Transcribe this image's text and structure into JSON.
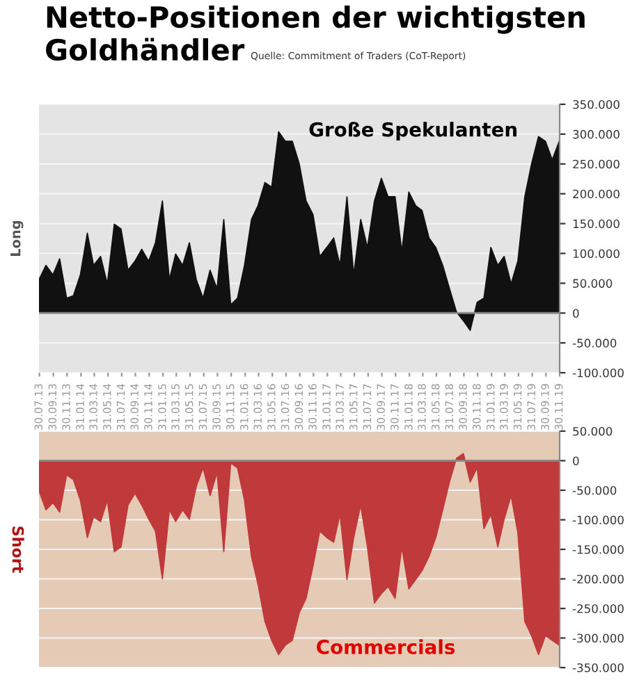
{
  "chart_data": [
    {
      "type": "area",
      "title": "Netto-Positionen der wichtigsten Goldhändler",
      "subtitle": "Quelle: Commitment of Traders (CoT-Report)",
      "ylabel": "Long",
      "annotations": [
        "Große Spekulanten"
      ],
      "x": [
        "2013-07-28",
        "2013-08-28",
        "2013-09-28",
        "2013-10-28",
        "2013-11-28",
        "2013-12-28",
        "2014-01-28",
        "2014-02-28",
        "2014-03-28",
        "2014-04-28",
        "2014-05-28",
        "2014-06-28",
        "2014-07-28",
        "2014-08-28",
        "2014-09-28",
        "2014-10-28",
        "2014-11-28",
        "2014-12-28",
        "2015-01-28",
        "2015-02-28",
        "2015-03-28",
        "2015-04-28",
        "2015-05-28",
        "2015-06-28",
        "2015-07-28",
        "2015-08-28",
        "2015-09-28",
        "2015-10-28",
        "2015-11-28",
        "2015-12-28",
        "2016-01-28",
        "2016-02-28",
        "2016-03-28",
        "2016-04-28",
        "2016-05-28",
        "2016-06-28",
        "2016-07-28",
        "2016-08-28",
        "2016-09-28",
        "2016-10-28",
        "2016-11-28",
        "2016-12-28",
        "2017-01-28",
        "2017-02-28",
        "2017-03-28",
        "2017-04-28",
        "2017-05-28",
        "2017-06-28",
        "2017-07-28",
        "2017-08-28",
        "2017-09-28",
        "2017-10-28",
        "2017-11-28",
        "2017-12-28",
        "2018-01-28",
        "2018-02-28",
        "2018-03-28",
        "2018-04-28",
        "2018-05-28",
        "2018-06-28",
        "2018-07-28",
        "2018-08-28",
        "2018-09-28",
        "2018-10-28",
        "2018-11-28",
        "2018-12-28",
        "2019-01-28",
        "2019-02-28",
        "2019-03-28",
        "2019-04-28",
        "2019-05-28",
        "2019-06-28",
        "2019-07-28",
        "2019-08-28",
        "2019-09-28",
        "2019-10-28",
        "2019-11-28"
      ],
      "series": [
        {
          "color": "#111111",
          "values": [
            56000,
            80000,
            64000,
            91000,
            25000,
            29000,
            64000,
            134000,
            80000,
            95000,
            49000,
            149000,
            141000,
            72000,
            87000,
            107000,
            87000,
            118000,
            188000,
            56000,
            99000,
            80000,
            118000,
            56000,
            25000,
            72000,
            41000,
            157000,
            14000,
            25000,
            80000,
            157000,
            180000,
            219000,
            211000,
            304000,
            288000,
            288000,
            250000,
            188000,
            165000,
            95000,
            110000,
            126000,
            80000,
            195000,
            64000,
            157000,
            110000,
            188000,
            226000,
            195000,
            195000,
            103000,
            203000,
            180000,
            172000,
            126000,
            110000,
            80000,
            41000,
            2000,
            -13000,
            -29000,
            18000,
            25000,
            110000,
            80000,
            95000,
            49000,
            87000,
            195000,
            250000,
            296000,
            288000,
            257000,
            288000
          ]
        }
      ],
      "xlim": [
        "2013-07-28",
        "2019-11-30"
      ],
      "xticks": [
        {
          "value": "2013-07-30",
          "label": "30.07.13"
        },
        {
          "value": "2013-09-30",
          "label": "30.09.13"
        },
        {
          "value": "2013-11-30",
          "label": "30.11.13"
        },
        {
          "value": "2014-01-31",
          "label": "31.01.14"
        },
        {
          "value": "2014-03-31",
          "label": "31.03.14"
        },
        {
          "value": "2014-05-31",
          "label": "31.05.14"
        },
        {
          "value": "2014-07-31",
          "label": "31.07.14"
        },
        {
          "value": "2014-09-30",
          "label": "30.09.14"
        },
        {
          "value": "2014-11-30",
          "label": "30.11.14"
        },
        {
          "value": "2015-01-31",
          "label": "31.01.15"
        },
        {
          "value": "2015-03-31",
          "label": "31.03.15"
        },
        {
          "value": "2015-05-31",
          "label": "31.05.15"
        },
        {
          "value": "2015-07-31",
          "label": "31.07.15"
        },
        {
          "value": "2015-09-30",
          "label": "30.09.15"
        },
        {
          "value": "2015-11-30",
          "label": "30.11.15"
        },
        {
          "value": "2016-01-31",
          "label": "31.01.16"
        },
        {
          "value": "2016-03-31",
          "label": "31.03.16"
        },
        {
          "value": "2016-05-31",
          "label": "31.05.16"
        },
        {
          "value": "2016-07-31",
          "label": "31.07.16"
        },
        {
          "value": "2016-09-30",
          "label": "30.09.16"
        },
        {
          "value": "2016-11-30",
          "label": "30.11.16"
        },
        {
          "value": "2017-01-31",
          "label": "31.01.17"
        },
        {
          "value": "2017-03-31",
          "label": "31.03.17"
        },
        {
          "value": "2017-05-31",
          "label": "31.05.17"
        },
        {
          "value": "2017-07-31",
          "label": "31.07.17"
        },
        {
          "value": "2017-09-30",
          "label": "30.09.17"
        },
        {
          "value": "2017-11-30",
          "label": "30.11.17"
        },
        {
          "value": "2018-01-31",
          "label": "31.01.18"
        },
        {
          "value": "2018-03-31",
          "label": "31.03.18"
        },
        {
          "value": "2018-05-31",
          "label": "31.05.18"
        },
        {
          "value": "2018-07-31",
          "label": "31.07.18"
        },
        {
          "value": "2018-09-30",
          "label": "30.09.18"
        },
        {
          "value": "2018-11-30",
          "label": "30.11.18"
        },
        {
          "value": "2019-01-31",
          "label": "31.01.19"
        },
        {
          "value": "2019-03-31",
          "label": "31.03.19"
        },
        {
          "value": "2019-05-31",
          "label": "31.05.19"
        },
        {
          "value": "2019-07-31",
          "label": "31.07.19"
        },
        {
          "value": "2019-09-30",
          "label": "30.09.19"
        },
        {
          "value": "2019-11-30",
          "label": "30.11.19"
        }
      ],
      "ylim": [
        -100000,
        350000
      ],
      "yticks": [
        {
          "value": -100000,
          "label": "-100.000"
        },
        {
          "value": -50000,
          "label": "-50.000"
        },
        {
          "value": 0,
          "label": "0"
        },
        {
          "value": 50000,
          "label": "50.000"
        },
        {
          "value": 100000,
          "label": "100.000"
        },
        {
          "value": 150000,
          "label": "150.000"
        },
        {
          "value": 200000,
          "label": "200.000"
        },
        {
          "value": 250000,
          "label": "250.000"
        },
        {
          "value": 300000,
          "label": "300.000"
        },
        {
          "value": 350000,
          "label": "350.000"
        }
      ],
      "grid": "y"
    },
    {
      "type": "area",
      "ylabel": "Short",
      "annotations": [
        "Commercials"
      ],
      "x": [
        "2013-07-28",
        "2013-08-28",
        "2013-09-28",
        "2013-10-28",
        "2013-11-28",
        "2013-12-28",
        "2014-01-28",
        "2014-02-28",
        "2014-03-28",
        "2014-04-28",
        "2014-05-28",
        "2014-06-28",
        "2014-07-28",
        "2014-08-28",
        "2014-09-28",
        "2014-10-28",
        "2014-11-28",
        "2014-12-28",
        "2015-01-28",
        "2015-02-28",
        "2015-03-28",
        "2015-04-28",
        "2015-05-28",
        "2015-06-28",
        "2015-07-28",
        "2015-08-28",
        "2015-09-28",
        "2015-10-28",
        "2015-11-28",
        "2015-12-28",
        "2016-01-28",
        "2016-02-28",
        "2016-03-28",
        "2016-04-28",
        "2016-05-28",
        "2016-06-28",
        "2016-07-28",
        "2016-08-28",
        "2016-09-28",
        "2016-10-28",
        "2016-11-28",
        "2016-12-28",
        "2017-01-28",
        "2017-02-28",
        "2017-03-28",
        "2017-04-28",
        "2017-05-28",
        "2017-06-28",
        "2017-07-28",
        "2017-08-28",
        "2017-09-28",
        "2017-10-28",
        "2017-11-28",
        "2017-12-28",
        "2018-01-28",
        "2018-02-28",
        "2018-03-28",
        "2018-04-28",
        "2018-05-28",
        "2018-06-28",
        "2018-07-28",
        "2018-08-28",
        "2018-09-28",
        "2018-10-28",
        "2018-11-28",
        "2018-12-28",
        "2019-01-28",
        "2019-02-28",
        "2019-03-28",
        "2019-04-28",
        "2019-05-28",
        "2019-06-28",
        "2019-07-28",
        "2019-08-28",
        "2019-09-28",
        "2019-10-28",
        "2019-11-28"
      ],
      "series": [
        {
          "color": "#c0393b",
          "values": [
            -51000,
            -83000,
            -71000,
            -87000,
            -24000,
            -32000,
            -67000,
            -130000,
            -95000,
            -103000,
            -67000,
            -154000,
            -146000,
            -75000,
            -55000,
            -75000,
            -99000,
            -119000,
            -200000,
            -83000,
            -103000,
            -83000,
            -99000,
            -43000,
            -12000,
            -59000,
            -20000,
            -154000,
            -4000,
            -12000,
            -67000,
            -162000,
            -209000,
            -272000,
            -304000,
            -328000,
            -312000,
            -304000,
            -257000,
            -233000,
            -178000,
            -119000,
            -130000,
            -138000,
            -91000,
            -201000,
            -130000,
            -75000,
            -146000,
            -241000,
            -225000,
            -213000,
            -233000,
            -146000,
            -217000,
            -201000,
            -186000,
            -162000,
            -130000,
            -83000,
            -36000,
            4000,
            12000,
            -36000,
            -12000,
            -115000,
            -91000,
            -146000,
            -99000,
            -59000,
            -122000,
            -272000,
            -296000,
            -328000,
            -296000,
            -304000,
            -312000
          ]
        }
      ],
      "xlim": [
        "2013-07-28",
        "2019-11-30"
      ],
      "ylim": [
        -350000,
        50000
      ],
      "yticks": [
        {
          "value": -350000,
          "label": "-350.000"
        },
        {
          "value": -300000,
          "label": "-300.000"
        },
        {
          "value": -250000,
          "label": "-250.000"
        },
        {
          "value": -200000,
          "label": "-200.000"
        },
        {
          "value": -150000,
          "label": "-150.000"
        },
        {
          "value": -100000,
          "label": "-100.000"
        },
        {
          "value": -50000,
          "label": "-50.000"
        },
        {
          "value": 0,
          "label": "0"
        },
        {
          "value": 50000,
          "label": "50.000"
        }
      ],
      "tick_labels": "y",
      "grid": "y"
    }
  ]
}
